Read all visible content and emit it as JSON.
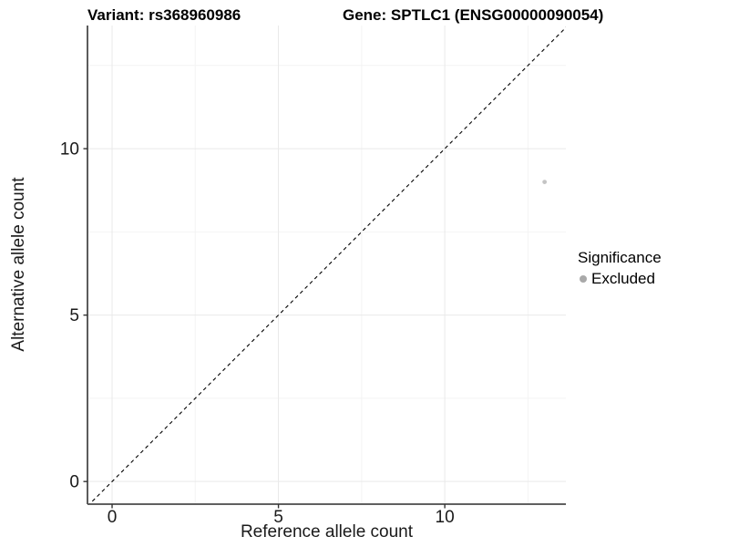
{
  "titles": {
    "variant": "Variant: rs368960986",
    "gene": "Gene: SPTLC1 (ENSG00000090054)"
  },
  "axes": {
    "x_label": "Reference allele count",
    "y_label": "Alternative allele count"
  },
  "legend": {
    "title": "Significance",
    "items": [
      {
        "label": "Excluded",
        "color": "#bebebe"
      }
    ]
  },
  "colors": {
    "background": "#ffffff",
    "axis_line": "#4a4a4a",
    "tick_mark": "#333333",
    "tick_label": "#1a1a1a",
    "grid_major": "#e9e9e9",
    "grid_minor": "#f4f4f4",
    "reference_line": "#000000",
    "point": "#c4c4c4",
    "legend_key": "#a9a9a9"
  },
  "chart_data": {
    "type": "scatter",
    "title_left": "Variant: rs368960986",
    "title_right": "Gene: SPTLC1 (ENSG00000090054)",
    "xlabel": "Reference allele count",
    "ylabel": "Alternative allele count",
    "xlim": [
      -0.74,
      13.64
    ],
    "ylim": [
      -0.68,
      13.7
    ],
    "x_major_ticks": [
      0,
      5,
      10
    ],
    "x_minor_ticks": [
      2.5,
      7.5,
      12.5
    ],
    "y_major_ticks": [
      0,
      5,
      10
    ],
    "y_minor_ticks": [
      2.5,
      7.5,
      12.5
    ],
    "grid": "major and minor gridlines, very light gray on white panel",
    "axis_lines": "left and bottom only, dark gray",
    "legend_position": "right",
    "series": [
      {
        "name": "Excluded",
        "color": "#bebebe",
        "points": [
          [
            13,
            9
          ]
        ]
      }
    ],
    "reference_line": {
      "kind": "identity",
      "equation": "y = x",
      "style": "dashed",
      "color": "#000000"
    }
  }
}
